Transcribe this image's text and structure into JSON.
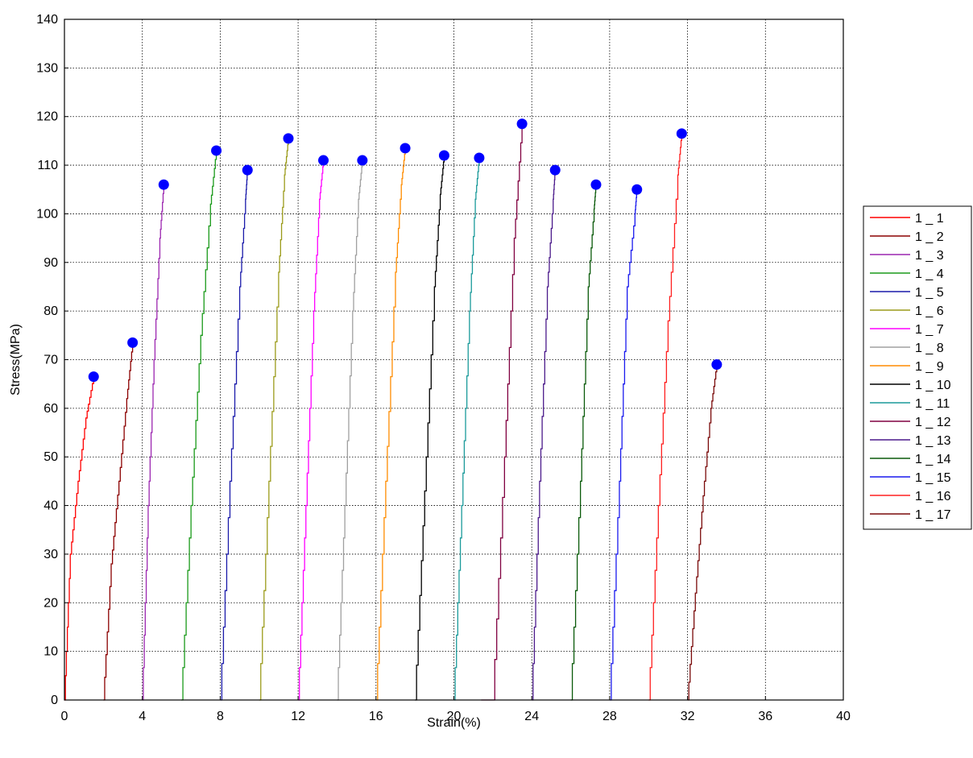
{
  "chart_data": {
    "type": "line",
    "title": "",
    "xlabel": "Strain(%)",
    "ylabel": "Stress(MPa)",
    "xlim": [
      0,
      40
    ],
    "ylim": [
      0,
      140
    ],
    "xticks": [
      0,
      4,
      8,
      12,
      16,
      20,
      24,
      28,
      32,
      36,
      40
    ],
    "yticks": [
      0,
      10,
      20,
      30,
      40,
      50,
      60,
      70,
      80,
      90,
      100,
      110,
      120,
      130,
      140
    ],
    "grid": true,
    "legend_position": "right",
    "marker_color": "#0000ff",
    "series": [
      {
        "name": "1 _ 1",
        "color": "#ff0000",
        "x": [
          0.0,
          0.3,
          0.7,
          1.1,
          1.5
        ],
        "y": [
          0,
          30,
          45,
          58,
          66.5
        ]
      },
      {
        "name": "1 _ 2",
        "color": "#8b0000",
        "x": [
          2.0,
          2.4,
          2.8,
          3.2,
          3.5
        ],
        "y": [
          0,
          28,
          45,
          62,
          73.5
        ]
      },
      {
        "name": "1 _ 3",
        "color": "#9c27b0",
        "x": [
          4.0,
          4.3,
          4.6,
          4.9,
          5.1
        ],
        "y": [
          0,
          40,
          70,
          95,
          106
        ]
      },
      {
        "name": "1 _ 4",
        "color": "#1a9a1a",
        "x": [
          6.0,
          6.5,
          7.0,
          7.5,
          7.8
        ],
        "y": [
          0,
          40,
          75,
          102,
          113
        ]
      },
      {
        "name": "1 _ 5",
        "color": "#1a1aaa",
        "x": [
          8.0,
          8.5,
          9.0,
          9.3,
          9.4
        ],
        "y": [
          0,
          45,
          85,
          103,
          109
        ]
      },
      {
        "name": "1 _ 6",
        "color": "#9b9b1a",
        "x": [
          10.0,
          10.5,
          11.0,
          11.3,
          11.5
        ],
        "y": [
          0,
          45,
          88,
          108,
          115.5
        ]
      },
      {
        "name": "1 _ 7",
        "color": "#ff00ff",
        "x": [
          12.0,
          12.4,
          12.8,
          13.1,
          13.3
        ],
        "y": [
          0,
          40,
          80,
          103,
          111
        ]
      },
      {
        "name": "1 _ 8",
        "color": "#a0a0a0",
        "x": [
          14.0,
          14.4,
          14.8,
          15.1,
          15.3
        ],
        "y": [
          0,
          40,
          80,
          103,
          111
        ]
      },
      {
        "name": "1 _ 9",
        "color": "#ff8c00",
        "x": [
          16.0,
          16.5,
          17.0,
          17.3,
          17.5
        ],
        "y": [
          0,
          45,
          88,
          106,
          113.5
        ]
      },
      {
        "name": "1 _ 10",
        "color": "#000000",
        "x": [
          18.0,
          18.5,
          19.0,
          19.3,
          19.5
        ],
        "y": [
          0,
          43,
          85,
          104,
          112
        ]
      },
      {
        "name": "1 _ 11",
        "color": "#1a9a9a",
        "x": [
          20.0,
          20.4,
          20.8,
          21.1,
          21.3
        ],
        "y": [
          0,
          40,
          80,
          103,
          111.5
        ]
      },
      {
        "name": "1 _ 12",
        "color": "#800040",
        "x": [
          21.4,
          22.0,
          22.6,
          23.1,
          23.5
        ],
        "y": [
          0,
          0,
          50,
          95,
          118.5
        ]
      },
      {
        "name": "1 _ 13",
        "color": "#4b1a8b",
        "x": [
          24.0,
          24.4,
          24.8,
          25.1,
          25.2
        ],
        "y": [
          0,
          45,
          85,
          103,
          109
        ]
      },
      {
        "name": "1 _ 14",
        "color": "#0a5a0a",
        "x": [
          26.0,
          26.5,
          26.9,
          27.2,
          27.3
        ],
        "y": [
          0,
          45,
          85,
          101,
          106
        ]
      },
      {
        "name": "1 _ 15",
        "color": "#1a1aee",
        "x": [
          28.0,
          28.5,
          28.9,
          29.3,
          29.4
        ],
        "y": [
          0,
          45,
          85,
          100,
          105
        ]
      },
      {
        "name": "1 _ 16",
        "color": "#ff2020",
        "x": [
          30.0,
          30.5,
          31.0,
          31.5,
          31.7
        ],
        "y": [
          0,
          40,
          78,
          108,
          116.5
        ]
      },
      {
        "name": "1 _ 17",
        "color": "#7a0a0a",
        "x": [
          32.0,
          32.4,
          32.8,
          33.2,
          33.5
        ],
        "y": [
          0,
          22,
          42,
          60,
          69
        ]
      }
    ]
  }
}
